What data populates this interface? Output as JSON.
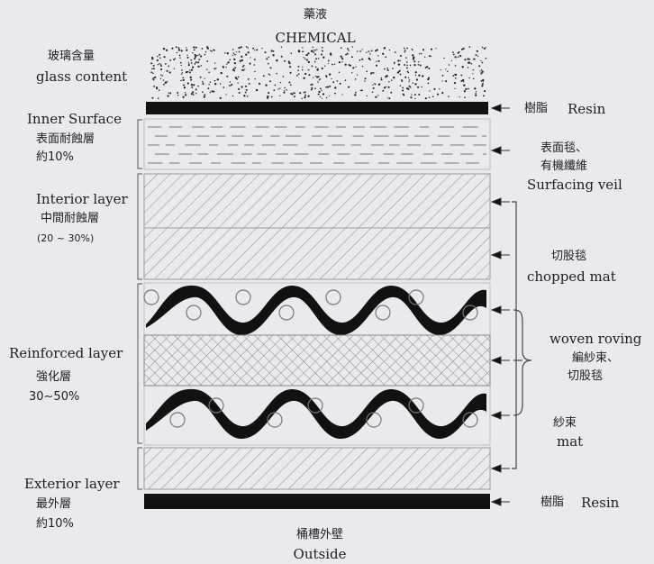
{
  "top": {
    "zh": "藥液",
    "en": "CHEMICAL"
  },
  "bottom": {
    "zh": "桶槽外壁",
    "en": "Outside"
  },
  "left": {
    "glass": {
      "zh": "玻璃含量",
      "en": "glass content"
    },
    "inner": {
      "en": "Inner Surface",
      "zh": "表面耐蝕層",
      "pct": "約10%"
    },
    "interior": {
      "en": "Interior layer",
      "zh": "中間耐蝕層",
      "pct": "(20 ~ 30%)"
    },
    "reinforced": {
      "en": "Reinforced layer",
      "zh": "強化層",
      "pct": "30~50%"
    },
    "exterior": {
      "en": "Exterior layer",
      "zh": "最外層",
      "pct": "約10%"
    }
  },
  "right": {
    "resin_top": {
      "zh": "樹脂",
      "en": "Resin"
    },
    "veil": {
      "zh1": "表面毯、",
      "zh2": "有機纖維",
      "en": "Surfacing veil"
    },
    "chopped": {
      "zh": "切股毯",
      "en": "chopped mat"
    },
    "woven": {
      "en": "woven roving",
      "zh1": "編紗束、",
      "zh2": "切股毯"
    },
    "mat": {
      "zh": "紗束",
      "en": "mat"
    },
    "resin_bottom": {
      "zh": "樹脂",
      "en": "Resin"
    }
  },
  "colors": {
    "background": "#ebe9ee",
    "ink": "#1e1e1e",
    "hatch": "#8a8a8a",
    "resin": "#111111"
  }
}
